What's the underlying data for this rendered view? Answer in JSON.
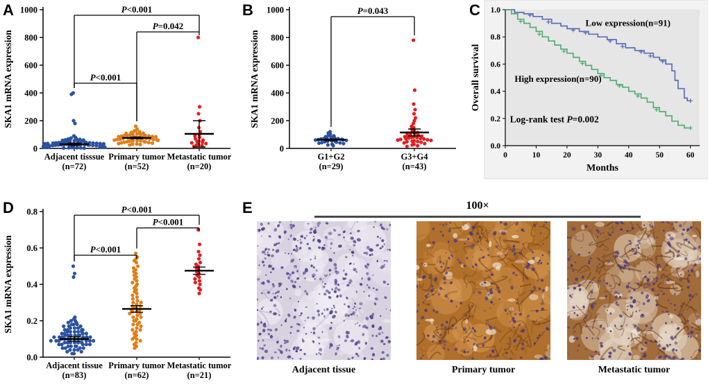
{
  "chart_data": [
    {
      "panel": "A",
      "type": "scatter",
      "ylabel": "SKA1 mRNA expression",
      "ylim": [
        0,
        1000
      ],
      "yticks": [
        "0",
        "200",
        "400",
        "600",
        "800",
        "1000"
      ],
      "groups": [
        {
          "name": "Adjacent tisssue",
          "n": "(n=72)",
          "color": "#2a52a2",
          "mean": 30,
          "sem": 9,
          "values": [
            2,
            3,
            4,
            5,
            5,
            6,
            7,
            8,
            8,
            9,
            10,
            10,
            11,
            12,
            12,
            13,
            14,
            15,
            15,
            16,
            17,
            18,
            18,
            19,
            20,
            20,
            21,
            22,
            23,
            24,
            25,
            25,
            26,
            27,
            28,
            29,
            30,
            30,
            31,
            32,
            33,
            34,
            35,
            36,
            37,
            38,
            39,
            40,
            41,
            42,
            43,
            44,
            45,
            46,
            48,
            50,
            52,
            54,
            56,
            58,
            60,
            62,
            65,
            68,
            70,
            75,
            80,
            90,
            180,
            200,
            390,
            400
          ]
        },
        {
          "name": "Primary tumor",
          "n": "(n=52)",
          "color": "#e07f17",
          "mean": 76,
          "sem": 6,
          "values": [
            25,
            28,
            30,
            32,
            35,
            38,
            40,
            42,
            44,
            46,
            48,
            50,
            52,
            54,
            55,
            56,
            58,
            60,
            62,
            64,
            65,
            66,
            68,
            70,
            72,
            74,
            75,
            76,
            78,
            80,
            82,
            84,
            85,
            86,
            88,
            90,
            92,
            94,
            95,
            96,
            98,
            100,
            102,
            105,
            108,
            110,
            115,
            120,
            125,
            130,
            140,
            160
          ]
        },
        {
          "name": "Metastatic tumor",
          "n": "(n=20)",
          "color": "#e31e1e",
          "mean": 105,
          "sem": 95,
          "values": [
            15,
            20,
            25,
            30,
            35,
            40,
            45,
            50,
            55,
            60,
            70,
            80,
            90,
            100,
            120,
            150,
            200,
            250,
            300,
            800
          ]
        }
      ],
      "comparisons": [
        {
          "a": 0,
          "b": 1,
          "y": 470,
          "label": "P<0.001"
        },
        {
          "a": 1,
          "b": 2,
          "y": 840,
          "label": "P=0.042"
        },
        {
          "a": 0,
          "b": 2,
          "y": 960,
          "label": "P<0.001"
        }
      ]
    },
    {
      "panel": "B",
      "type": "scatter",
      "ylabel": "SKA1 mRNA expression",
      "ylim": [
        0,
        1000
      ],
      "yticks": [
        "0",
        "200",
        "400",
        "600",
        "800",
        "1000"
      ],
      "groups": [
        {
          "name": "G1+G2",
          "n": "(n=29)",
          "color": "#2a52a2",
          "mean": 62,
          "sem": 6,
          "values": [
            20,
            25,
            30,
            35,
            38,
            40,
            42,
            45,
            48,
            50,
            52,
            55,
            58,
            60,
            62,
            64,
            66,
            68,
            70,
            72,
            75,
            78,
            80,
            85,
            90,
            95,
            100,
            110,
            120
          ]
        },
        {
          "name": "G3+G4",
          "n": "(n=43)",
          "color": "#e31e1e",
          "mean": 115,
          "sem": 25,
          "values": [
            15,
            20,
            25,
            30,
            35,
            40,
            45,
            48,
            50,
            52,
            55,
            58,
            60,
            62,
            65,
            68,
            70,
            72,
            75,
            78,
            80,
            82,
            85,
            88,
            90,
            95,
            100,
            105,
            110,
            115,
            120,
            130,
            140,
            150,
            160,
            180,
            200,
            220,
            250,
            280,
            320,
            420,
            780
          ]
        }
      ],
      "comparisons": [
        {
          "a": 0,
          "b": 1,
          "y": 950,
          "label": "P=0.043"
        }
      ]
    },
    {
      "panel": "C",
      "type": "line",
      "xlabel": "Months",
      "ylabel": "Overall survival",
      "xlim": [
        0,
        63
      ],
      "ylim": [
        0,
        1.0
      ],
      "xticks": [
        0,
        10,
        20,
        30,
        40,
        50,
        60
      ],
      "yticks": [
        "0.0",
        "0.2",
        "0.4",
        "0.6",
        "0.8",
        "1.0"
      ],
      "annotation": {
        "text": "Log-rank test P=0.002",
        "x": 1.5,
        "y": 0.17
      },
      "series": [
        {
          "name": "Low expression(n=91)",
          "color": "#5a6fb5",
          "label_x": 26,
          "label_y": 0.88,
          "steps": [
            [
              0,
              1.0
            ],
            [
              3,
              0.98
            ],
            [
              6,
              0.97
            ],
            [
              9,
              0.95
            ],
            [
              12,
              0.93
            ],
            [
              15,
              0.9
            ],
            [
              18,
              0.88
            ],
            [
              20,
              0.86
            ],
            [
              24,
              0.84
            ],
            [
              27,
              0.82
            ],
            [
              30,
              0.8
            ],
            [
              33,
              0.78
            ],
            [
              36,
              0.75
            ],
            [
              39,
              0.72
            ],
            [
              42,
              0.7
            ],
            [
              45,
              0.68
            ],
            [
              48,
              0.65
            ],
            [
              50,
              0.63
            ],
            [
              52,
              0.6
            ],
            [
              54,
              0.55
            ],
            [
              55,
              0.48
            ],
            [
              56,
              0.42
            ],
            [
              58,
              0.35
            ],
            [
              59,
              0.33
            ],
            [
              60,
              0.33
            ]
          ],
          "censors": [
            [
              8,
              0.96
            ],
            [
              14,
              0.91
            ],
            [
              22,
              0.85
            ],
            [
              26,
              0.83
            ],
            [
              34,
              0.77
            ],
            [
              38,
              0.73
            ],
            [
              44,
              0.69
            ],
            [
              47,
              0.66
            ],
            [
              51,
              0.62
            ],
            [
              60,
              0.33
            ]
          ]
        },
        {
          "name": "High expression(n=90)",
          "color": "#53ae71",
          "label_x": 3,
          "label_y": 0.47,
          "steps": [
            [
              0,
              1.0
            ],
            [
              2,
              0.97
            ],
            [
              4,
              0.93
            ],
            [
              6,
              0.9
            ],
            [
              8,
              0.87
            ],
            [
              10,
              0.84
            ],
            [
              12,
              0.8
            ],
            [
              14,
              0.77
            ],
            [
              16,
              0.74
            ],
            [
              18,
              0.71
            ],
            [
              20,
              0.68
            ],
            [
              22,
              0.65
            ],
            [
              24,
              0.62
            ],
            [
              26,
              0.59
            ],
            [
              28,
              0.56
            ],
            [
              30,
              0.53
            ],
            [
              32,
              0.5
            ],
            [
              34,
              0.48
            ],
            [
              36,
              0.45
            ],
            [
              38,
              0.43
            ],
            [
              40,
              0.4
            ],
            [
              42,
              0.38
            ],
            [
              44,
              0.35
            ],
            [
              46,
              0.32
            ],
            [
              48,
              0.28
            ],
            [
              50,
              0.25
            ],
            [
              52,
              0.22
            ],
            [
              54,
              0.18
            ],
            [
              56,
              0.15
            ],
            [
              58,
              0.13
            ],
            [
              60,
              0.13
            ]
          ],
          "censors": [
            [
              5,
              0.915
            ],
            [
              11,
              0.82
            ],
            [
              19,
              0.695
            ],
            [
              25,
              0.605
            ],
            [
              31,
              0.515
            ],
            [
              37,
              0.44
            ],
            [
              43,
              0.365
            ],
            [
              49,
              0.265
            ],
            [
              60,
              0.13
            ]
          ]
        }
      ]
    },
    {
      "panel": "D",
      "type": "scatter",
      "ylabel": "SKA1 mRNA expression",
      "ylim": [
        0,
        0.8
      ],
      "yticks": [
        "0.0",
        "0.2",
        "0.4",
        "0.6",
        "0.8"
      ],
      "groups": [
        {
          "name": "Adjacent tissue",
          "n": "(n=83)",
          "color": "#2a52a2",
          "mean": 0.1,
          "sem": 0.012,
          "values": [
            0.02,
            0.03,
            0.03,
            0.04,
            0.04,
            0.05,
            0.05,
            0.05,
            0.06,
            0.06,
            0.06,
            0.07,
            0.07,
            0.07,
            0.07,
            0.08,
            0.08,
            0.08,
            0.08,
            0.08,
            0.09,
            0.09,
            0.09,
            0.09,
            0.09,
            0.1,
            0.1,
            0.1,
            0.1,
            0.1,
            0.1,
            0.1,
            0.11,
            0.11,
            0.11,
            0.11,
            0.11,
            0.12,
            0.12,
            0.12,
            0.12,
            0.12,
            0.13,
            0.13,
            0.13,
            0.13,
            0.14,
            0.14,
            0.14,
            0.14,
            0.15,
            0.15,
            0.15,
            0.15,
            0.16,
            0.16,
            0.16,
            0.17,
            0.17,
            0.17,
            0.18,
            0.18,
            0.18,
            0.19,
            0.19,
            0.2,
            0.2,
            0.21,
            0.22,
            0.02,
            0.04,
            0.06,
            0.08,
            0.1,
            0.12,
            0.14,
            0.05,
            0.07,
            0.09,
            0.11,
            0.44,
            0.46,
            0.5
          ]
        },
        {
          "name": "Primary tumor",
          "n": "(n=62)",
          "color": "#e07f17",
          "mean": 0.265,
          "sem": 0.018,
          "values": [
            0.05,
            0.06,
            0.07,
            0.08,
            0.09,
            0.1,
            0.1,
            0.11,
            0.12,
            0.13,
            0.14,
            0.15,
            0.15,
            0.16,
            0.17,
            0.18,
            0.18,
            0.19,
            0.2,
            0.2,
            0.21,
            0.22,
            0.22,
            0.23,
            0.24,
            0.24,
            0.25,
            0.25,
            0.26,
            0.26,
            0.27,
            0.27,
            0.28,
            0.28,
            0.29,
            0.3,
            0.3,
            0.31,
            0.32,
            0.33,
            0.34,
            0.35,
            0.36,
            0.37,
            0.38,
            0.39,
            0.4,
            0.41,
            0.42,
            0.43,
            0.44,
            0.45,
            0.46,
            0.47,
            0.48,
            0.49,
            0.5,
            0.52,
            0.53,
            0.54,
            0.55,
            0.57
          ]
        },
        {
          "name": "Metastatic tumor",
          "n": "(n=21)",
          "color": "#e31e1e",
          "mean": 0.475,
          "sem": 0.02,
          "values": [
            0.35,
            0.37,
            0.38,
            0.4,
            0.41,
            0.42,
            0.43,
            0.44,
            0.45,
            0.46,
            0.47,
            0.48,
            0.49,
            0.5,
            0.51,
            0.52,
            0.54,
            0.56,
            0.58,
            0.62,
            0.7
          ]
        }
      ],
      "comparisons": [
        {
          "a": 0,
          "b": 1,
          "y": 0.56,
          "label": "P<0.001"
        },
        {
          "a": 1,
          "b": 2,
          "y": 0.71,
          "label": "P<0.001"
        },
        {
          "a": 0,
          "b": 2,
          "y": 0.78,
          "label": "P<0.001"
        }
      ]
    }
  ],
  "panel_e": {
    "panel": "E",
    "magnification": "100×",
    "images": [
      {
        "label": "Adjacent tissue",
        "base": "#d8d2e0",
        "light": "#f1eef5",
        "dark": "#b9a8cc",
        "nucleus": "#4e3f8a",
        "mesh": 20,
        "nuclei": 420,
        "gaps": 25,
        "patches": 45,
        "seed": 11
      },
      {
        "label": "Primary tumor",
        "base": "#b06f2a",
        "light": "#d89a55",
        "dark": "#6e3c10",
        "nucleus": "#473a80",
        "mesh": 130,
        "nuclei": 230,
        "gaps": 35,
        "patches": 40,
        "seed": 22
      },
      {
        "label": "Metastatic tumor",
        "base": "#a26b3a",
        "light": "#e6d9c8",
        "dark": "#5f3511",
        "nucleus": "#473a80",
        "mesh": 110,
        "nuclei": 300,
        "gaps": 30,
        "patches": 50,
        "seed": 33
      }
    ]
  }
}
